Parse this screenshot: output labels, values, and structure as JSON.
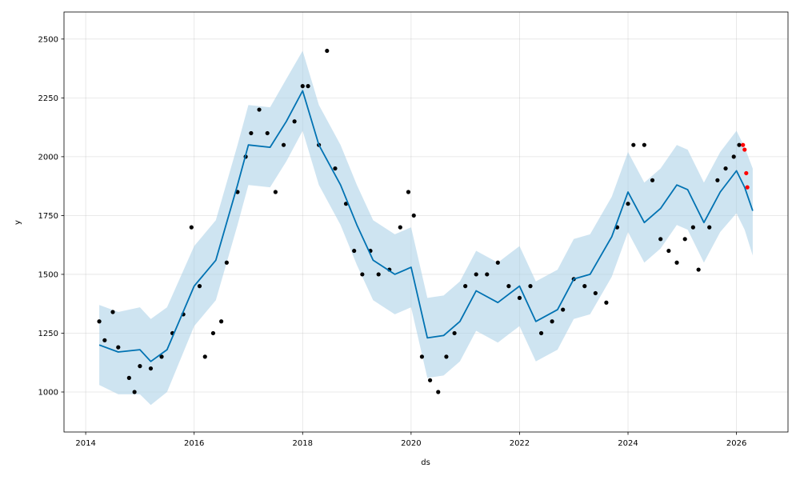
{
  "chart_data": {
    "type": "scatter",
    "title": "",
    "xlabel": "ds",
    "ylabel": "y",
    "xlim": [
      2013.6,
      2026.95
    ],
    "ylim": [
      830,
      2615
    ],
    "x_ticks": [
      2014,
      2016,
      2018,
      2020,
      2022,
      2024,
      2026
    ],
    "y_ticks": [
      1000,
      1250,
      1500,
      1750,
      2000,
      2250,
      2500
    ],
    "grid": true,
    "legend": "none",
    "colors": {
      "observed": "#000000",
      "recent": "#ff0000",
      "forecast_line": "#0072b2",
      "interval": "#a6cde6"
    },
    "forecast": {
      "x": [
        2014.25,
        2014.6,
        2015.0,
        2015.2,
        2015.5,
        2016.0,
        2016.4,
        2016.8,
        2017.0,
        2017.4,
        2017.7,
        2018.0,
        2018.3,
        2018.7,
        2019.0,
        2019.3,
        2019.7,
        2020.0,
        2020.3,
        2020.6,
        2020.9,
        2021.2,
        2021.6,
        2022.0,
        2022.3,
        2022.7,
        2023.0,
        2023.3,
        2023.7,
        2024.0,
        2024.3,
        2024.6,
        2024.9,
        2025.1,
        2025.4,
        2025.7,
        2026.0,
        2026.15,
        2026.3
      ],
      "yhat": [
        1200,
        1170,
        1180,
        1130,
        1180,
        1450,
        1560,
        1880,
        2050,
        2040,
        2150,
        2280,
        2050,
        1880,
        1710,
        1560,
        1500,
        1530,
        1230,
        1240,
        1300,
        1430,
        1380,
        1450,
        1300,
        1350,
        1480,
        1500,
        1660,
        1850,
        1720,
        1780,
        1880,
        1860,
        1720,
        1850,
        1940,
        1870,
        1770
      ],
      "lower": [
        1030,
        990,
        990,
        945,
        1000,
        1280,
        1390,
        1710,
        1880,
        1870,
        1980,
        2110,
        1880,
        1710,
        1540,
        1390,
        1330,
        1360,
        1060,
        1070,
        1130,
        1260,
        1210,
        1280,
        1130,
        1180,
        1310,
        1330,
        1490,
        1680,
        1550,
        1610,
        1710,
        1690,
        1550,
        1680,
        1760,
        1690,
        1580
      ],
      "upper": [
        1370,
        1340,
        1360,
        1310,
        1360,
        1620,
        1730,
        2050,
        2220,
        2210,
        2330,
        2450,
        2220,
        2050,
        1880,
        1730,
        1670,
        1700,
        1400,
        1410,
        1470,
        1600,
        1550,
        1620,
        1470,
        1520,
        1650,
        1670,
        1830,
        2020,
        1890,
        1950,
        2050,
        2030,
        1890,
        2020,
        2110,
        2040,
        1950
      ]
    },
    "observed": {
      "x": [
        2014.25,
        2014.35,
        2014.5,
        2014.6,
        2014.8,
        2014.9,
        2015.0,
        2015.2,
        2015.4,
        2015.6,
        2015.8,
        2015.95,
        2016.1,
        2016.2,
        2016.35,
        2016.5,
        2016.6,
        2016.8,
        2016.95,
        2017.05,
        2017.2,
        2017.35,
        2017.5,
        2017.65,
        2017.85,
        2018.0,
        2018.1,
        2018.3,
        2018.45,
        2018.6,
        2018.8,
        2018.95,
        2019.1,
        2019.25,
        2019.4,
        2019.6,
        2019.8,
        2019.95,
        2020.05,
        2020.2,
        2020.35,
        2020.5,
        2020.65,
        2020.8,
        2021.0,
        2021.2,
        2021.4,
        2021.6,
        2021.8,
        2022.0,
        2022.2,
        2022.4,
        2022.6,
        2022.8,
        2023.0,
        2023.2,
        2023.4,
        2023.6,
        2023.8,
        2024.0,
        2024.1,
        2024.3,
        2024.45,
        2024.6,
        2024.75,
        2024.9,
        2025.05,
        2025.2,
        2025.3,
        2025.5,
        2025.65,
        2025.8,
        2025.95,
        2026.05
      ],
      "y": [
        1300,
        1220,
        1340,
        1190,
        1060,
        1000,
        1110,
        1100,
        1150,
        1250,
        1330,
        1700,
        1450,
        1150,
        1250,
        1300,
        1550,
        1850,
        2000,
        2100,
        2200,
        2100,
        1850,
        2050,
        2150,
        2300,
        2300,
        2050,
        2450,
        1950,
        1800,
        1600,
        1500,
        1600,
        1500,
        1520,
        1700,
        1850,
        1750,
        1150,
        1050,
        1000,
        1150,
        1250,
        1450,
        1500,
        1500,
        1550,
        1450,
        1400,
        1450,
        1250,
        1300,
        1350,
        1480,
        1450,
        1420,
        1380,
        1700,
        1800,
        2050,
        2050,
        1900,
        1650,
        1600,
        1550,
        1650,
        1700,
        1520,
        1700,
        1900,
        1950,
        2000,
        2050
      ]
    },
    "recent": {
      "x": [
        2026.12,
        2026.15,
        2026.18,
        2026.2
      ],
      "y": [
        2050,
        2030,
        1930,
        1870
      ]
    }
  }
}
